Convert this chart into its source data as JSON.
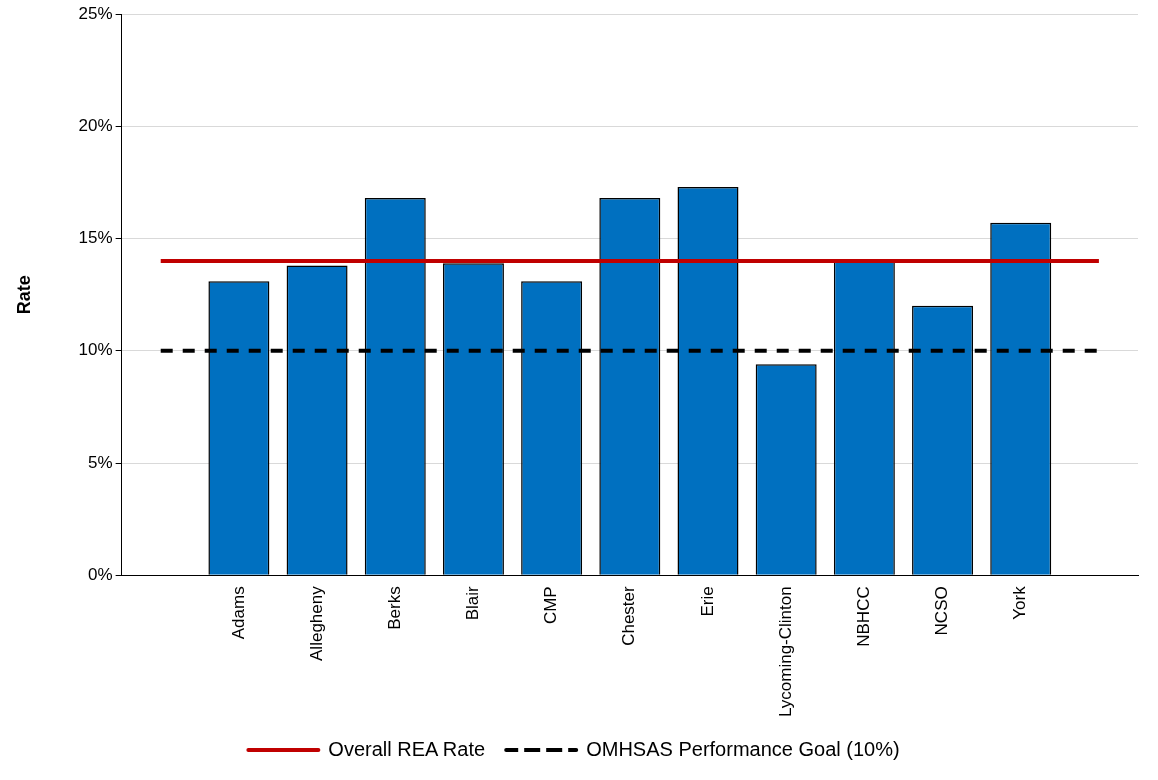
{
  "chart_data": {
    "type": "bar",
    "ylabel": "Rate",
    "categories": [
      null,
      "Adams",
      "Allegheny",
      "Berks",
      "Blair",
      "CMP",
      "Chester",
      "Erie",
      "Lycoming-Clinton",
      "NBHCC",
      "NCSO",
      "York",
      null
    ],
    "series": [
      {
        "color": "#0070c0",
        "values": [
          null,
          13.1,
          13.8,
          16.8,
          13.9,
          13.1,
          16.8,
          17.3,
          9.4,
          14.0,
          12.0,
          15.7,
          null
        ]
      },
      {
        "type": "line",
        "name": "Overall REA Rate",
        "color": "#c00000",
        "line_style": "solid",
        "values": [
          14,
          14,
          14,
          14,
          14,
          14,
          14,
          14,
          14,
          14,
          14,
          14,
          14
        ]
      },
      {
        "type": "line",
        "name": "OMHSAS Performance Goal (10%)",
        "color": "#000000",
        "line_style": "dashed",
        "values": [
          10,
          10,
          10,
          10,
          10,
          10,
          10,
          10,
          10,
          10,
          10,
          10,
          10
        ]
      }
    ],
    "ylim": [
      0,
      25
    ],
    "yticks": [
      {
        "value": 0,
        "label": "0%"
      },
      {
        "value": 5,
        "label": "5%"
      },
      {
        "value": 10,
        "label": "10%"
      },
      {
        "value": 15,
        "label": "15%"
      },
      {
        "value": 20,
        "label": "20%"
      },
      {
        "value": 25,
        "label": "25%"
      }
    ],
    "grid": "y",
    "legend": "bottom"
  }
}
